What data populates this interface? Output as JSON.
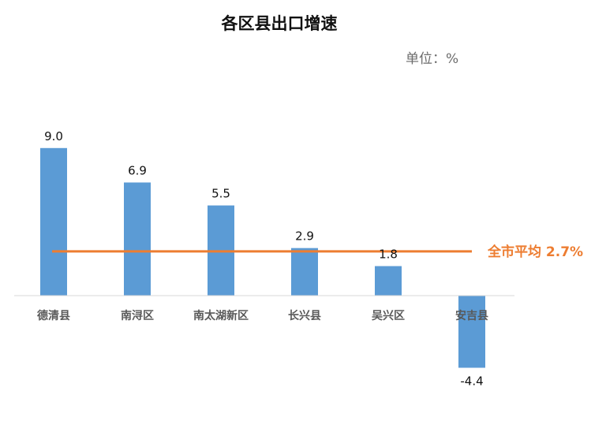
{
  "chart_data": {
    "type": "bar",
    "title": "各区县出口增速",
    "unit_label": "单位：%",
    "categories": [
      "德清县",
      "南浔区",
      "南太湖新区",
      "长兴县",
      "吴兴区",
      "安吉县"
    ],
    "values": [
      9.0,
      6.9,
      5.5,
      2.9,
      1.8,
      -4.4
    ],
    "value_labels": [
      "9.0",
      "6.9",
      "5.5",
      "2.9",
      "1.8",
      "-4.4"
    ],
    "reference_line": {
      "label": "全市平均 2.7%",
      "value": 2.7
    },
    "ylim": [
      -5,
      10
    ],
    "grid": false,
    "colors": {
      "bar": "#5b9bd5",
      "average_line": "#ed7d31",
      "axis": "#d9d9d9"
    }
  }
}
